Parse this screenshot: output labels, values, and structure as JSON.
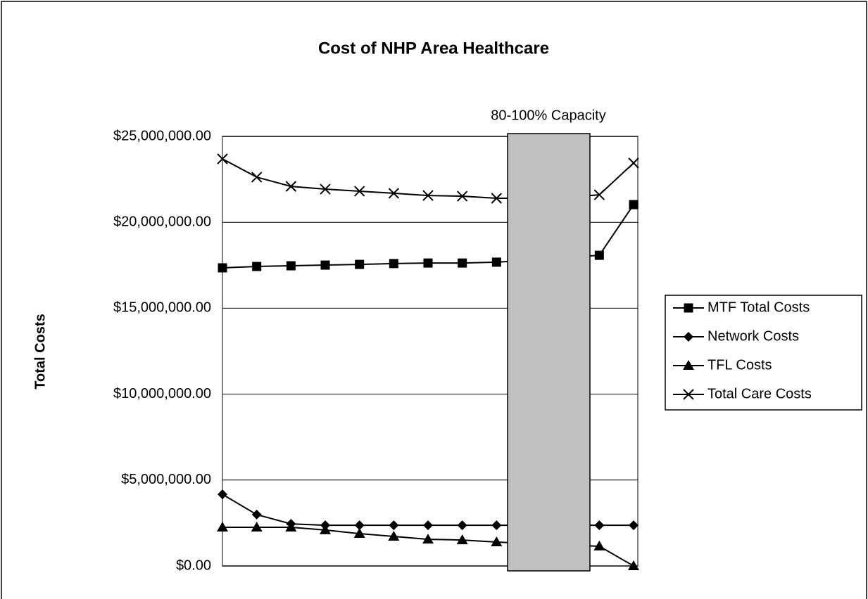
{
  "chart_data": {
    "type": "line",
    "title": "Cost of NHP Area Healthcare",
    "y_label": "Total Costs",
    "annotation": "80-100% Capacity",
    "categories": [
      null,
      null,
      null,
      null,
      null,
      null,
      null,
      null,
      null,
      null,
      null,
      null,
      null
    ],
    "series": [
      {
        "name": "MTF Total Costs",
        "color": "#000000",
        "marker": "square",
        "values": [
          17.35,
          17.43,
          17.47,
          17.51,
          17.55,
          17.6,
          17.63,
          17.63,
          17.68,
          17.8,
          17.95,
          18.08,
          21.03
        ]
      },
      {
        "name": "Network Costs",
        "color": "#000000",
        "marker": "diamond",
        "values": [
          4.17,
          2.99,
          2.45,
          2.37,
          2.37,
          2.37,
          2.37,
          2.37,
          2.37,
          2.37,
          2.37,
          2.37,
          2.37
        ]
      },
      {
        "name": "TFL Costs",
        "color": "#000000",
        "marker": "triangle",
        "values": [
          2.25,
          2.25,
          2.25,
          2.09,
          1.88,
          1.72,
          1.55,
          1.51,
          1.39,
          1.3,
          1.2,
          1.15,
          0
        ]
      },
      {
        "name": "Total Care Costs",
        "color": "#000000",
        "marker": "x",
        "values": [
          23.69,
          22.63,
          22.09,
          21.93,
          21.81,
          21.69,
          21.56,
          21.52,
          21.4,
          21.4,
          21.45,
          21.6,
          23.45
        ]
      }
    ],
    "ylim": [
      0,
      25
    ],
    "yticks": [
      {
        "value": 0,
        "label": "$0.00"
      },
      {
        "value": 5,
        "label": "$5,000,000.00"
      },
      {
        "value": 10,
        "label": "$10,000,000.00"
      },
      {
        "value": 15,
        "label": "$15,000,000.00"
      },
      {
        "value": 20,
        "label": "$20,000,000.00"
      },
      {
        "value": 25,
        "label": "$25,000,000.00"
      }
    ],
    "grid": true,
    "legend": "right"
  }
}
